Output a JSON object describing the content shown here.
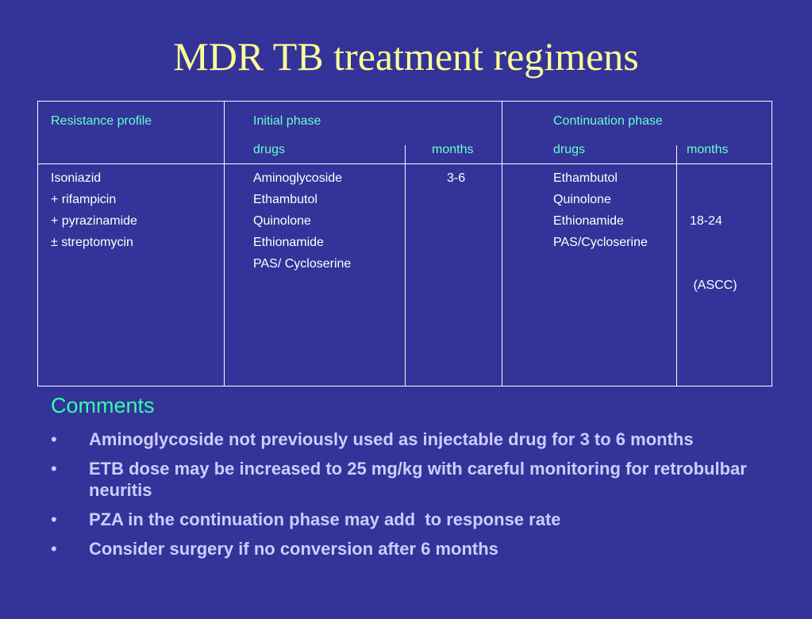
{
  "slide": {
    "title": "MDR TB treatment regimens"
  },
  "table": {
    "header": {
      "resistance_profile": "Resistance profile",
      "initial_phase": "Initial phase",
      "continuation_phase": "Continuation phase",
      "initial_drugs": "drugs",
      "initial_months": "months",
      "continuation_drugs": "drugs",
      "continuation_months": "months"
    },
    "body": {
      "resistance": [
        "Isoniazid",
        "+ rifampicin",
        "+ pyrazinamide",
        "± streptomycin"
      ],
      "initial_drugs": [
        "Aminoglycoside",
        "Ethambutol",
        "Quinolone",
        "Ethionamide",
        "PAS/ Cycloserine"
      ],
      "initial_months": [
        "3-6"
      ],
      "continuation_drugs": [
        "Ethambutol",
        "Quinolone",
        "Ethionamide",
        "PAS/Cycloserine"
      ],
      "continuation_months": [
        "18-24",
        " (ASCC)"
      ]
    }
  },
  "comments": {
    "heading": "Comments",
    "bullet_symbol": "•",
    "items": [
      "Aminoglycoside not previously used as injectable drug for 3 to 6 months",
      "ETB dose may be increased to 25 mg/kg with careful monitoring for retrobulbar neuritis",
      "PZA in the continuation phase may add  to response rate",
      "Consider surgery if no conversion after 6 months"
    ]
  },
  "colors": {
    "background": "#333399",
    "title": "#ffff99",
    "table_header": "#66ffcc",
    "table_body": "#ffffff",
    "comments_heading": "#33ffaa",
    "bullet_text": "#ccccff"
  }
}
